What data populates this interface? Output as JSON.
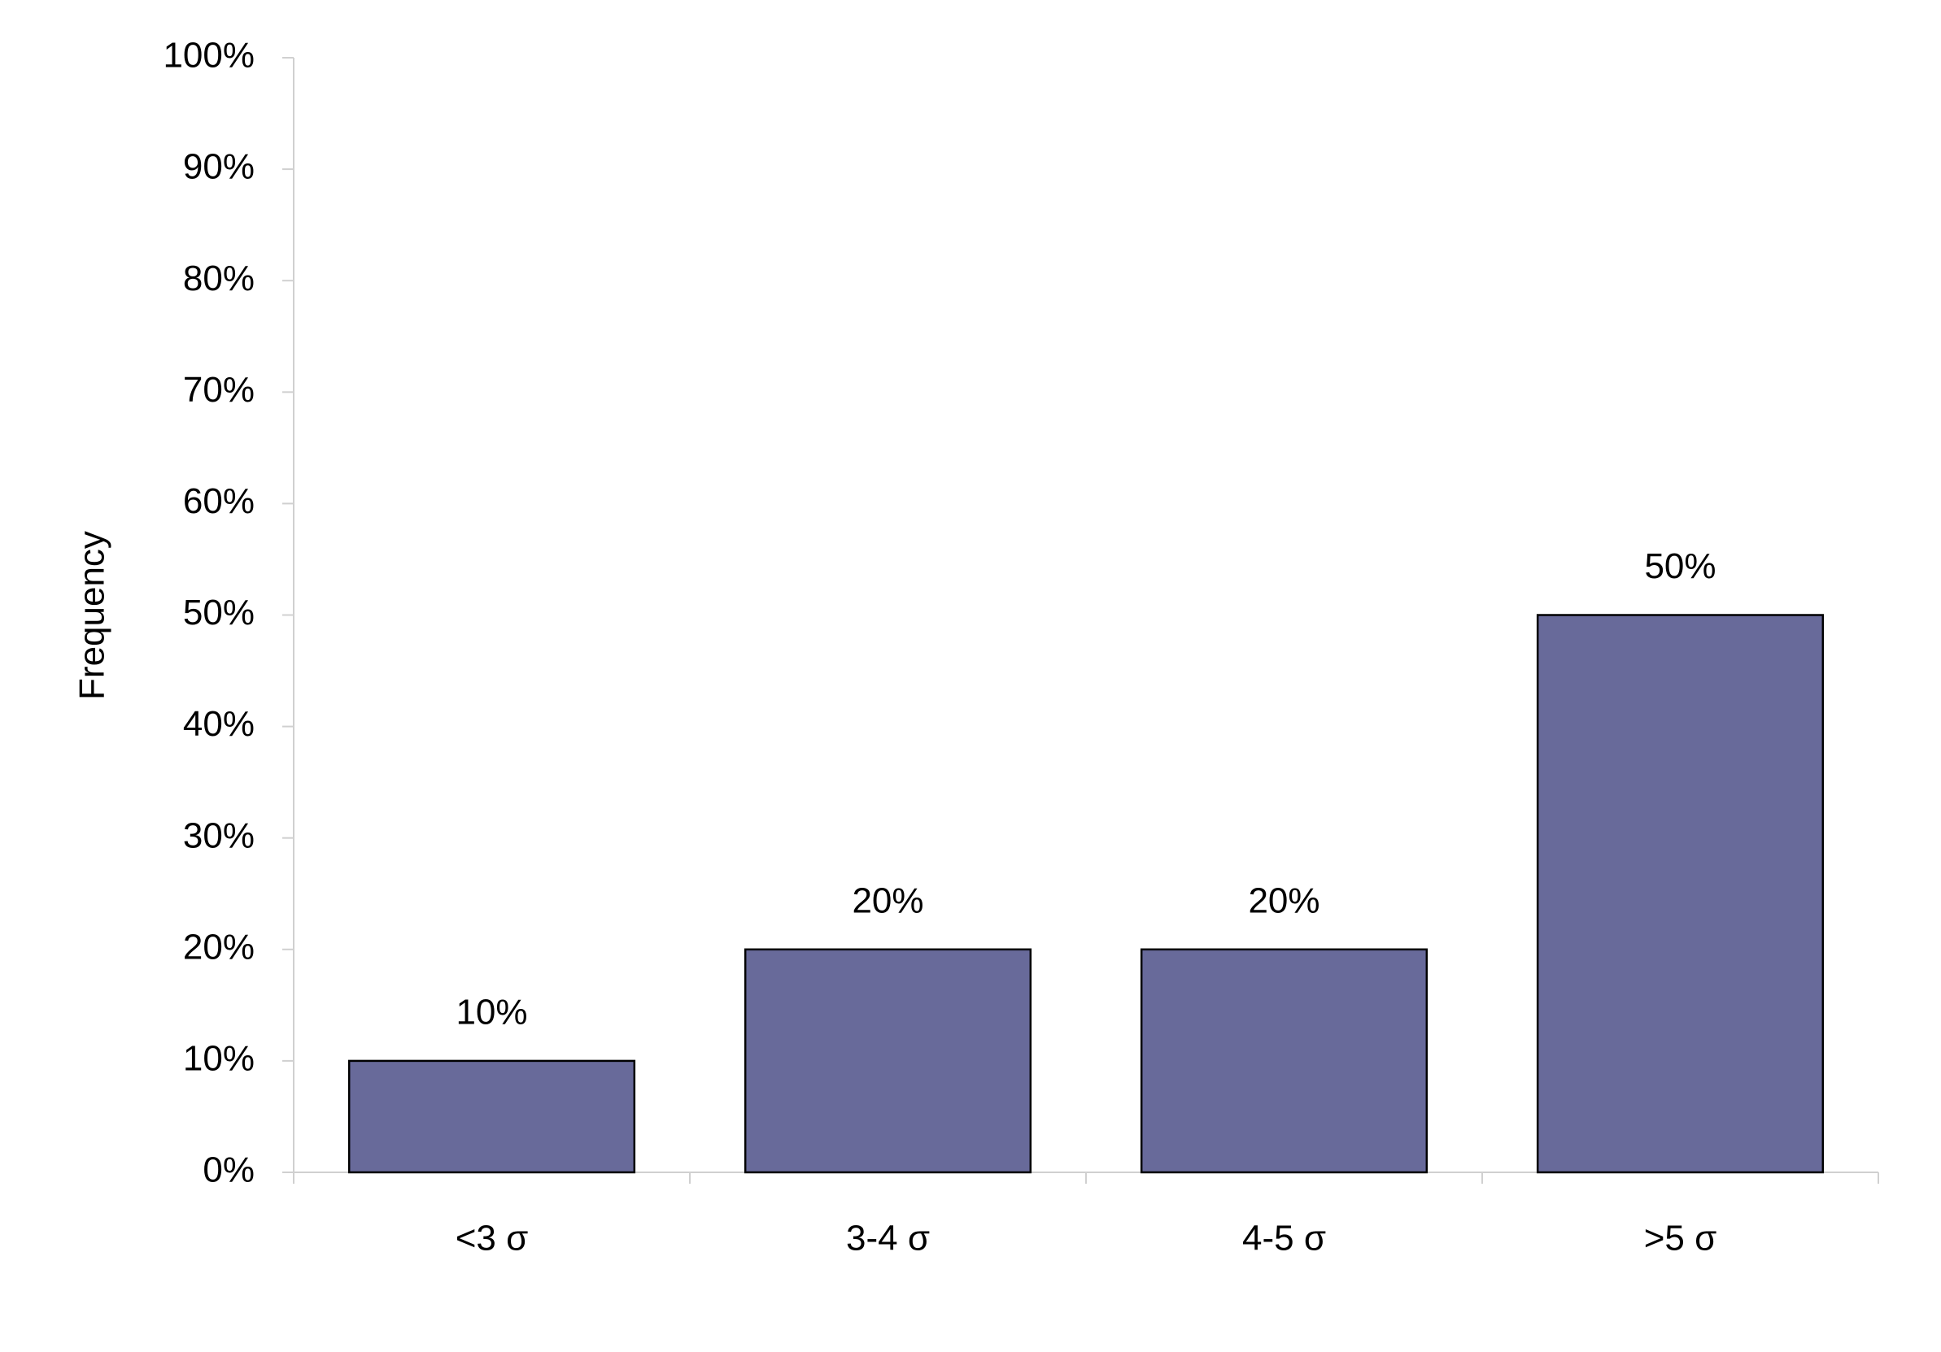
{
  "chart_data": {
    "type": "bar",
    "y_label": "Frequency",
    "categories": [
      "<3 σ",
      "3-4 σ",
      "4-5 σ",
      ">5 σ"
    ],
    "values": [
      10,
      20,
      20,
      50
    ],
    "value_labels": [
      "10%",
      "20%",
      "20%",
      "50%"
    ],
    "color": "#686a9a",
    "ylim": [
      0,
      100
    ],
    "yticks": [
      {
        "value": 0,
        "label": "0%"
      },
      {
        "value": 10,
        "label": "10%"
      },
      {
        "value": 20,
        "label": "20%"
      },
      {
        "value": 30,
        "label": "30%"
      },
      {
        "value": 40,
        "label": "40%"
      },
      {
        "value": 50,
        "label": "50%"
      },
      {
        "value": 60,
        "label": "60%"
      },
      {
        "value": 70,
        "label": "70%"
      },
      {
        "value": 80,
        "label": "80%"
      },
      {
        "value": 90,
        "label": "90%"
      },
      {
        "value": 100,
        "label": "100%"
      }
    ],
    "grid": false
  }
}
